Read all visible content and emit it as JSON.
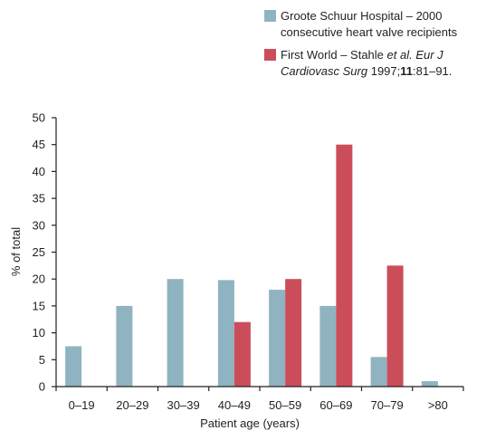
{
  "chart_data": {
    "type": "bar",
    "categories": [
      "0–19",
      "20–29",
      "30–39",
      "40–49",
      "50–59",
      "60–69",
      "70–79",
      ">80"
    ],
    "series": [
      {
        "name": "Groote Schuur Hospital – 2000 consecutive heart valve recipients",
        "legend_lines": [
          [
            {
              "text": "Groote Schuur Hospital – 2000"
            }
          ],
          [
            {
              "text": "consecutive heart valve recipients"
            }
          ]
        ],
        "color": "#8fb3c1",
        "values": [
          7.5,
          15,
          20,
          19.8,
          18,
          15,
          5.5,
          1
        ]
      },
      {
        "name": "First World – Stahle et al. Eur J Cardiovasc Surg 1997;11:81–91.",
        "legend_lines": [
          [
            {
              "text": "First World – Stahle "
            },
            {
              "text": "et al. Eur J",
              "italic": true
            }
          ],
          [
            {
              "text": "Cardiovasc Surg",
              "italic": true
            },
            {
              "text": " 1997;"
            },
            {
              "text": "11",
              "bold": true
            },
            {
              "text": ":81–91."
            }
          ]
        ],
        "color": "#cc4d5a",
        "values": [
          null,
          null,
          null,
          12,
          20,
          45,
          22.5,
          null
        ]
      }
    ],
    "xlabel": "Patient age (years)",
    "ylabel": "% of total",
    "ylim": [
      0,
      50
    ],
    "yticks": [
      0,
      5,
      10,
      15,
      20,
      25,
      30,
      35,
      40,
      45,
      50
    ],
    "grid": false,
    "legend_position": "top-right"
  }
}
